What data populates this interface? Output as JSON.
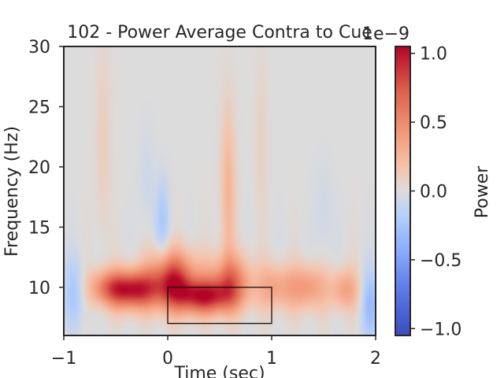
{
  "chart_data": {
    "type": "heatmap",
    "title": "102 - Power Average Contra to Cue",
    "xlabel": "Time (sec)",
    "ylabel": "Frequency (Hz)",
    "xlim": [
      -1,
      2
    ],
    "ylim": [
      6,
      30
    ],
    "xticks": [
      -1,
      0,
      1,
      2
    ],
    "xtick_labels": [
      "−1",
      "0",
      "1",
      "2"
    ],
    "yticks": [
      10,
      15,
      20,
      25,
      30
    ],
    "ytick_labels": [
      "10",
      "15",
      "20",
      "25",
      "30"
    ],
    "colormap": "coolwarm",
    "colors": {
      "low": "#3b4cc0",
      "mid": "#dddddd",
      "high": "#b40426"
    },
    "colorbar": {
      "label": "Power",
      "range": [
        -1.05,
        1.05
      ],
      "ticks": [
        1.0,
        0.5,
        0.0,
        -0.5,
        -1.0
      ],
      "tick_labels": [
        "1.0",
        "0.5",
        "0.0",
        "−0.5",
        "−1.0"
      ],
      "offset_label": "1e−9"
    },
    "roi_box": {
      "time": [
        0,
        1
      ],
      "frequency": [
        7,
        10
      ]
    },
    "blobs": [
      {
        "t": -0.35,
        "f": 9.8,
        "st": 0.17,
        "sf": 1.1,
        "a": 0.95
      },
      {
        "t": 0.05,
        "f": 10.6,
        "st": 0.16,
        "sf": 1.6,
        "a": 0.85
      },
      {
        "t": 0.35,
        "f": 9.2,
        "st": 0.2,
        "sf": 1.0,
        "a": 0.8
      },
      {
        "t": 0.6,
        "f": 10.5,
        "st": 0.15,
        "sf": 1.5,
        "a": 0.55
      },
      {
        "t": -0.6,
        "f": 10.0,
        "st": 0.12,
        "sf": 1.0,
        "a": 0.35
      },
      {
        "t": 1.05,
        "f": 10.0,
        "st": 0.12,
        "sf": 1.3,
        "a": 0.35
      },
      {
        "t": 1.35,
        "f": 10.0,
        "st": 0.12,
        "sf": 1.3,
        "a": 0.4
      },
      {
        "t": 1.7,
        "f": 9.8,
        "st": 0.1,
        "sf": 1.2,
        "a": 0.35
      },
      {
        "t": 0.58,
        "f": 18.0,
        "st": 0.05,
        "sf": 5.0,
        "a": 0.25
      },
      {
        "t": -0.62,
        "f": 22.0,
        "st": 0.05,
        "sf": 6.0,
        "a": 0.1
      },
      {
        "t": 0.9,
        "f": 22.0,
        "st": 0.04,
        "sf": 5.0,
        "a": 0.08
      },
      {
        "t": -0.9,
        "f": 9.5,
        "st": 0.08,
        "sf": 2.0,
        "a": -0.2
      },
      {
        "t": -0.05,
        "f": 15.5,
        "st": 0.05,
        "sf": 2.5,
        "a": -0.2
      },
      {
        "t": 1.95,
        "f": 8.5,
        "st": 0.06,
        "sf": 2.0,
        "a": -0.3
      },
      {
        "t": -0.2,
        "f": 19.0,
        "st": 0.05,
        "sf": 3.0,
        "a": -0.07
      },
      {
        "t": 1.5,
        "f": 16.0,
        "st": 0.06,
        "sf": 3.0,
        "a": -0.07
      }
    ]
  }
}
